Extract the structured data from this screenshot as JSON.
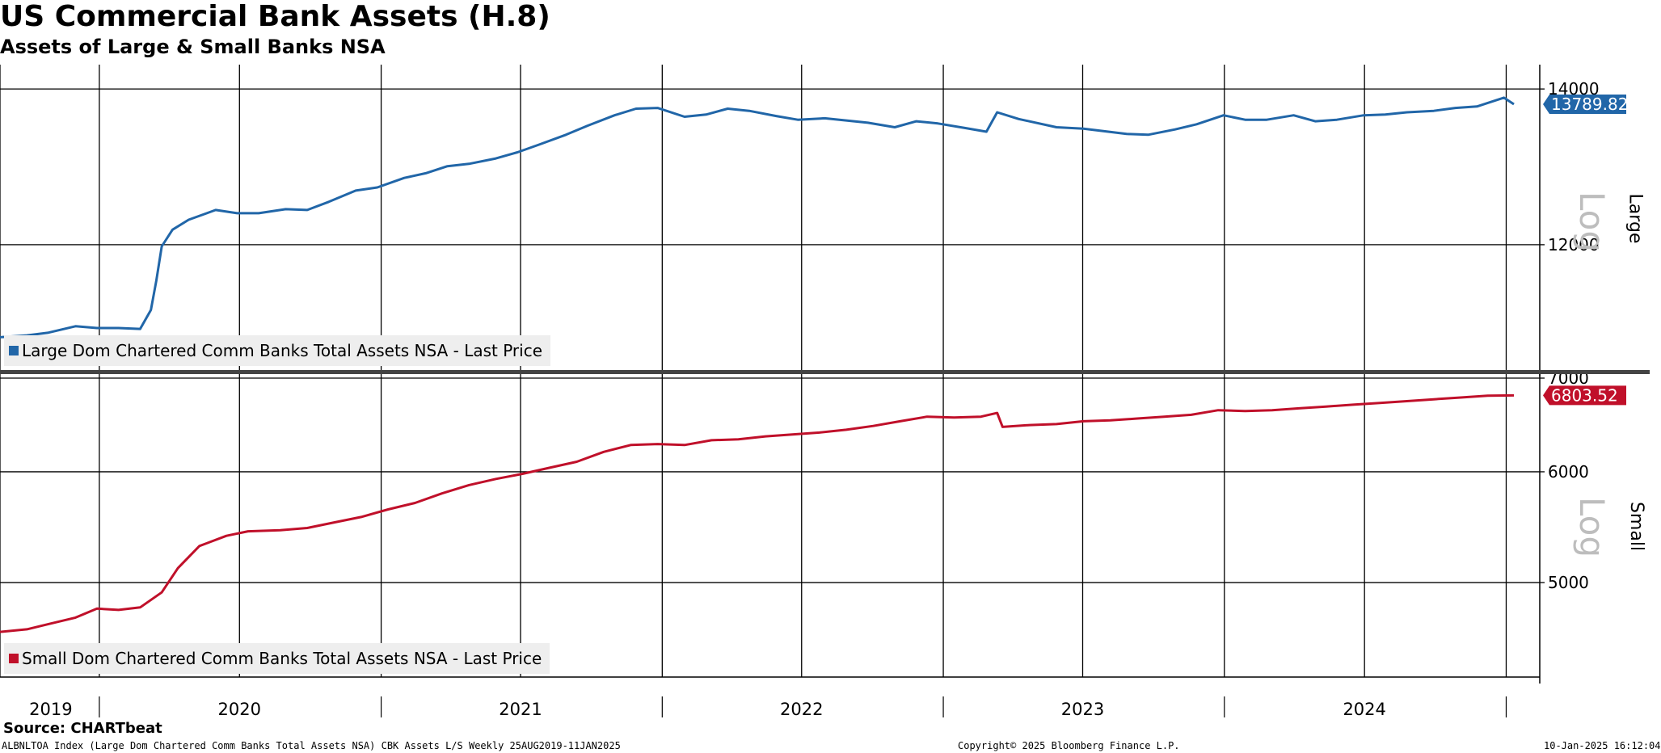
{
  "title": "US Commercial Bank Assets (H.8)",
  "subtitle": "Assets of Large & Small Banks NSA",
  "source": "Source: CHARTbeat",
  "footer": {
    "left": "ALBNLTOA Index (Large Dom Chartered Comm Banks Total Assets NSA) CBK Assets L/S  Weekly 25AUG2019-11JAN2025",
    "center": "Copyright© 2025 Bloomberg Finance L.P.",
    "right": "10-Jan-2025 16:12:04"
  },
  "colors": {
    "large": "#2166a8",
    "small": "#c0102a",
    "grid": "#000000",
    "legend_bg": "#eeeeee"
  },
  "chart_data": [
    {
      "type": "line",
      "panel": "Large",
      "scale": "log",
      "x_axis": "2019-08-25 to 2025-01-11, weekly",
      "x_ticks": [
        "2019",
        "2020",
        "2021",
        "2022",
        "2023",
        "2024"
      ],
      "y_ticks": [
        12000,
        14000
      ],
      "y_range": [
        10600,
        14250
      ],
      "series": [
        {
          "name": "Large Dom Chartered Comm Banks Total Assets NSA - Last Price",
          "last_value": "13789.82",
          "points": [
            [
              "2019-08-25",
              10950
            ],
            [
              "2019-09-29",
              10970
            ],
            [
              "2019-10-27",
              11000
            ],
            [
              "2019-12-01",
              11070
            ],
            [
              "2019-12-29",
              11050
            ],
            [
              "2020-01-26",
              11050
            ],
            [
              "2020-02-23",
              11040
            ],
            [
              "2020-03-08",
              11250
            ],
            [
              "2020-03-15",
              11580
            ],
            [
              "2020-03-22",
              11980
            ],
            [
              "2020-04-05",
              12180
            ],
            [
              "2020-04-26",
              12300
            ],
            [
              "2020-05-31",
              12420
            ],
            [
              "2020-06-28",
              12380
            ],
            [
              "2020-07-26",
              12380
            ],
            [
              "2020-08-30",
              12430
            ],
            [
              "2020-09-27",
              12420
            ],
            [
              "2020-10-25",
              12520
            ],
            [
              "2020-11-29",
              12660
            ],
            [
              "2020-12-27",
              12700
            ],
            [
              "2021-01-31",
              12820
            ],
            [
              "2021-02-28",
              12880
            ],
            [
              "2021-03-28",
              12970
            ],
            [
              "2021-04-25",
              13000
            ],
            [
              "2021-05-30",
              13070
            ],
            [
              "2021-06-27",
              13150
            ],
            [
              "2021-07-25",
              13250
            ],
            [
              "2021-08-29",
              13380
            ],
            [
              "2021-09-26",
              13500
            ],
            [
              "2021-10-31",
              13640
            ],
            [
              "2021-11-28",
              13730
            ],
            [
              "2021-12-26",
              13740
            ],
            [
              "2022-01-30",
              13620
            ],
            [
              "2022-02-27",
              13650
            ],
            [
              "2022-03-27",
              13730
            ],
            [
              "2022-04-24",
              13700
            ],
            [
              "2022-05-29",
              13630
            ],
            [
              "2022-06-26",
              13580
            ],
            [
              "2022-07-31",
              13600
            ],
            [
              "2022-08-28",
              13570
            ],
            [
              "2022-09-25",
              13540
            ],
            [
              "2022-10-30",
              13480
            ],
            [
              "2022-11-27",
              13560
            ],
            [
              "2022-12-25",
              13530
            ],
            [
              "2023-01-29",
              13470
            ],
            [
              "2023-02-26",
              13420
            ],
            [
              "2023-03-12",
              13680
            ],
            [
              "2023-04-09",
              13590
            ],
            [
              "2023-05-28",
              13480
            ],
            [
              "2023-07-02",
              13460
            ],
            [
              "2023-08-27",
              13390
            ],
            [
              "2023-09-24",
              13380
            ],
            [
              "2023-10-29",
              13450
            ],
            [
              "2023-11-26",
              13520
            ],
            [
              "2023-12-31",
              13640
            ],
            [
              "2024-01-28",
              13580
            ],
            [
              "2024-02-25",
              13580
            ],
            [
              "2024-03-31",
              13640
            ],
            [
              "2024-04-28",
              13560
            ],
            [
              "2024-05-26",
              13580
            ],
            [
              "2024-06-30",
              13640
            ],
            [
              "2024-07-28",
              13650
            ],
            [
              "2024-08-25",
              13680
            ],
            [
              "2024-09-29",
              13700
            ],
            [
              "2024-10-27",
              13740
            ],
            [
              "2024-11-24",
              13760
            ],
            [
              "2024-12-29",
              13880
            ],
            [
              "2025-01-11",
              13789.82
            ]
          ]
        }
      ]
    },
    {
      "type": "line",
      "panel": "Small",
      "scale": "log",
      "x_axis": "2019-08-25 to 2025-01-11, weekly",
      "x_ticks": [
        "2019",
        "2020",
        "2021",
        "2022",
        "2023",
        "2024"
      ],
      "y_ticks": [
        5000,
        6000,
        7000
      ],
      "y_range": [
        4280,
        7000
      ],
      "series": [
        {
          "name": "Small Dom Chartered Comm Banks Total Assets NSA - Last Price",
          "last_value": "6803.52",
          "points": [
            [
              "2019-08-25",
              4610
            ],
            [
              "2019-09-29",
              4630
            ],
            [
              "2019-10-27",
              4670
            ],
            [
              "2019-12-01",
              4720
            ],
            [
              "2019-12-29",
              4790
            ],
            [
              "2020-01-26",
              4780
            ],
            [
              "2020-02-23",
              4800
            ],
            [
              "2020-03-22",
              4920
            ],
            [
              "2020-04-12",
              5120
            ],
            [
              "2020-05-10",
              5310
            ],
            [
              "2020-06-14",
              5400
            ],
            [
              "2020-07-12",
              5440
            ],
            [
              "2020-08-23",
              5450
            ],
            [
              "2020-09-27",
              5470
            ],
            [
              "2020-11-01",
              5520
            ],
            [
              "2020-12-06",
              5570
            ],
            [
              "2021-01-10",
              5640
            ],
            [
              "2021-02-14",
              5700
            ],
            [
              "2021-03-21",
              5790
            ],
            [
              "2021-04-25",
              5870
            ],
            [
              "2021-05-30",
              5930
            ],
            [
              "2021-07-04",
              5980
            ],
            [
              "2021-08-08",
              6040
            ],
            [
              "2021-09-12",
              6100
            ],
            [
              "2021-10-17",
              6200
            ],
            [
              "2021-11-21",
              6270
            ],
            [
              "2021-12-26",
              6280
            ],
            [
              "2022-01-30",
              6270
            ],
            [
              "2022-03-06",
              6320
            ],
            [
              "2022-04-10",
              6330
            ],
            [
              "2022-05-15",
              6360
            ],
            [
              "2022-06-19",
              6380
            ],
            [
              "2022-07-24",
              6400
            ],
            [
              "2022-08-28",
              6430
            ],
            [
              "2022-10-02",
              6470
            ],
            [
              "2022-11-06",
              6520
            ],
            [
              "2022-12-11",
              6570
            ],
            [
              "2023-01-15",
              6560
            ],
            [
              "2023-02-19",
              6570
            ],
            [
              "2023-03-12",
              6610
            ],
            [
              "2023-03-19",
              6460
            ],
            [
              "2023-04-23",
              6480
            ],
            [
              "2023-05-28",
              6490
            ],
            [
              "2023-07-02",
              6520
            ],
            [
              "2023-08-06",
              6530
            ],
            [
              "2023-09-10",
              6550
            ],
            [
              "2023-10-15",
              6570
            ],
            [
              "2023-11-19",
              6590
            ],
            [
              "2023-12-24",
              6640
            ],
            [
              "2024-01-28",
              6630
            ],
            [
              "2024-03-03",
              6640
            ],
            [
              "2024-04-07",
              6660
            ],
            [
              "2024-05-12",
              6680
            ],
            [
              "2024-06-16",
              6700
            ],
            [
              "2024-07-21",
              6720
            ],
            [
              "2024-08-25",
              6740
            ],
            [
              "2024-09-29",
              6760
            ],
            [
              "2024-11-03",
              6780
            ],
            [
              "2024-12-08",
              6800
            ],
            [
              "2025-01-11",
              6803.52
            ]
          ]
        }
      ]
    }
  ]
}
